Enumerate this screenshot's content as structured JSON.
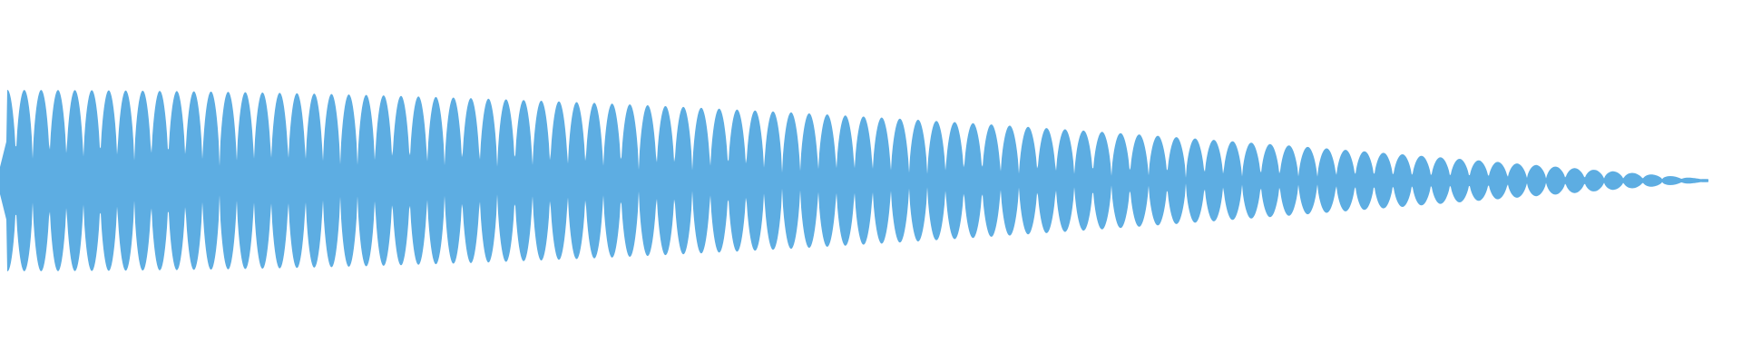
{
  "view": {
    "type": "audio-waveform",
    "colors": {
      "waveform": "#5dade2",
      "background": "#ffffff"
    }
  }
}
